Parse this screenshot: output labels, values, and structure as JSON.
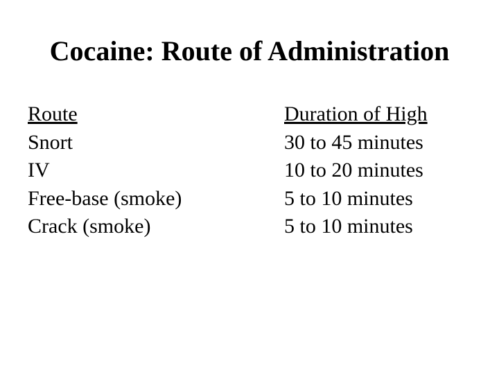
{
  "title": "Cocaine: Route of Administration",
  "table": {
    "columns": [
      "Route",
      "Duration of High"
    ],
    "rows": [
      [
        "Snort",
        "30  to 45 minutes"
      ],
      [
        "IV",
        "10 to 20 minutes"
      ],
      [
        "Free-base (smoke)",
        "5 to 10 minutes"
      ],
      [
        "Crack (smoke)",
        "5 to 10 minutes"
      ]
    ]
  }
}
